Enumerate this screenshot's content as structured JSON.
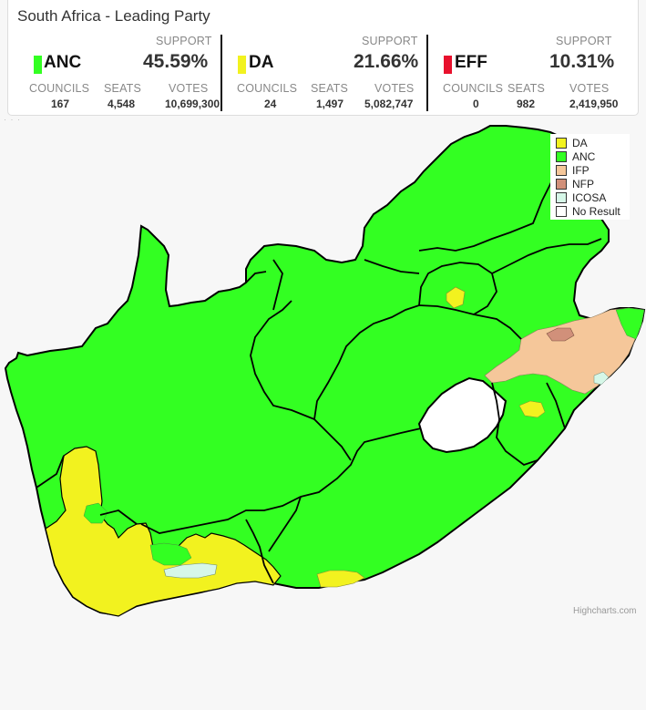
{
  "title": "South Africa - Leading Party",
  "header_labels": {
    "support": "SUPPORT",
    "councils": "COUNCILS",
    "seats": "SEATS",
    "votes": "VOTES"
  },
  "parties": [
    {
      "name": "ANC",
      "color": "#33ff22",
      "support": "45.59%",
      "councils": "167",
      "seats": "4,548",
      "votes": "10,699,300"
    },
    {
      "name": "DA",
      "color": "#f2f21f",
      "support": "21.66%",
      "councils": "24",
      "seats": "1,497",
      "votes": "5,082,747"
    },
    {
      "name": "EFF",
      "color": "#e8112d",
      "support": "10.31%",
      "councils": "0",
      "seats": "982",
      "votes": "2,419,950"
    }
  ],
  "legend": [
    {
      "label": "DA",
      "color": "#f2f21f"
    },
    {
      "label": "ANC",
      "color": "#33ff22"
    },
    {
      "label": "IFP",
      "color": "#f5c79a"
    },
    {
      "label": "NFP",
      "color": "#d1907a"
    },
    {
      "label": "ICOSA",
      "color": "#d6f7e8"
    },
    {
      "label": "No Result",
      "color": "#ffffff"
    }
  ],
  "credits": "Highcharts.com",
  "dots": "· · ·"
}
